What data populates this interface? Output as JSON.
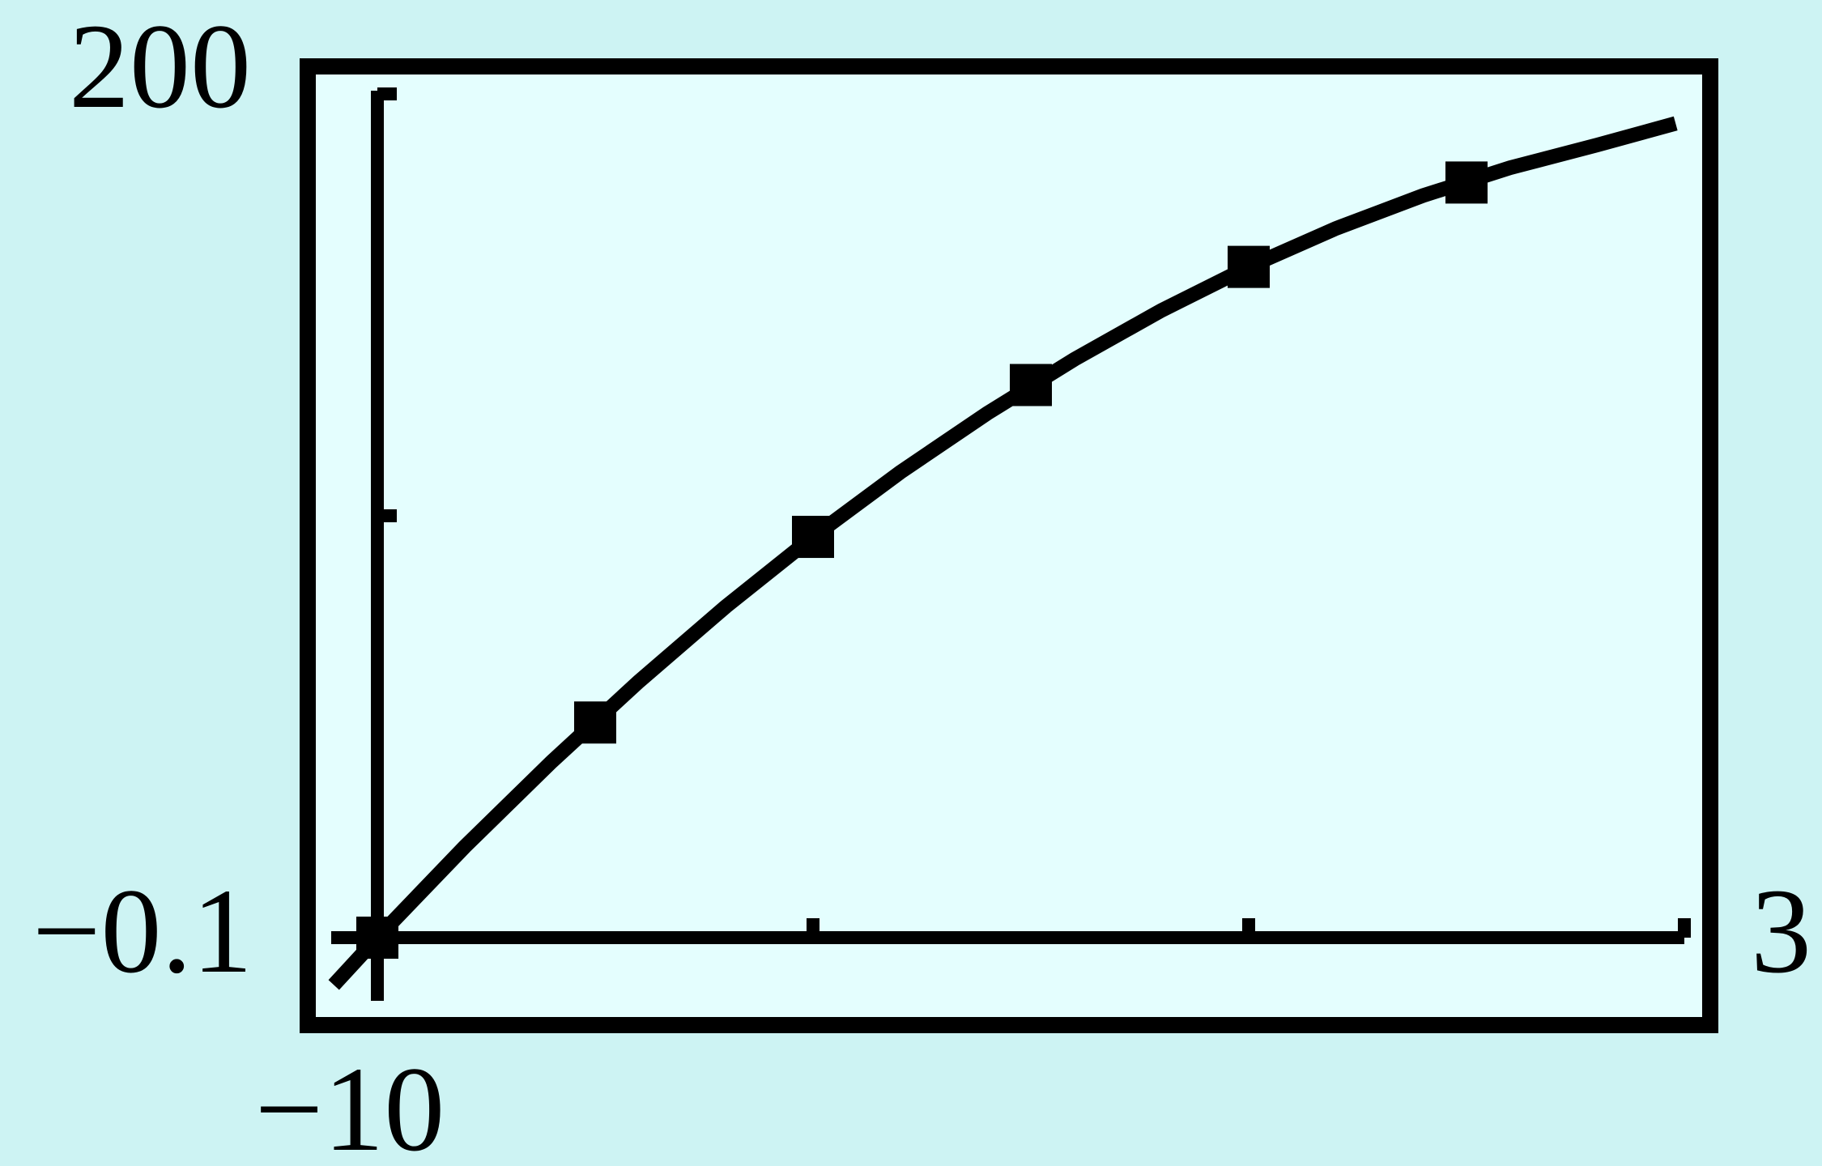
{
  "chart_data": {
    "type": "scatter",
    "title": "",
    "xlabel": "",
    "ylabel": "",
    "xlim": [
      -0.1,
      3
    ],
    "ylim": [
      -10,
      200
    ],
    "x_ticks": [
      1,
      2,
      3
    ],
    "y_ticks": [
      100,
      200
    ],
    "grid": false,
    "window_labels": {
      "ymax": "200",
      "xmin": "−0.1",
      "xmax": "3",
      "ymin": "−10"
    },
    "series": [
      {
        "kind": "points",
        "x": [
          0,
          0.5,
          1.0,
          1.5,
          2.0,
          2.5
        ],
        "y": [
          0,
          51,
          95,
          131,
          159,
          179
        ]
      },
      {
        "kind": "curve",
        "x": [
          -0.1,
          0,
          0.2,
          0.4,
          0.6,
          0.8,
          1.0,
          1.2,
          1.4,
          1.6,
          1.8,
          2.0,
          2.2,
          2.4,
          2.6,
          2.8,
          2.98
        ],
        "y": [
          -11.2,
          0,
          21.5,
          41.7,
          60.7,
          78.5,
          95,
          110.3,
          124.3,
          137.1,
          148.7,
          159,
          168.1,
          175.9,
          182.5,
          187.9,
          193
        ]
      }
    ],
    "colors": {
      "background": "#cdf3f3",
      "plot_background": "#e4fefe",
      "ink": "#000000"
    }
  }
}
